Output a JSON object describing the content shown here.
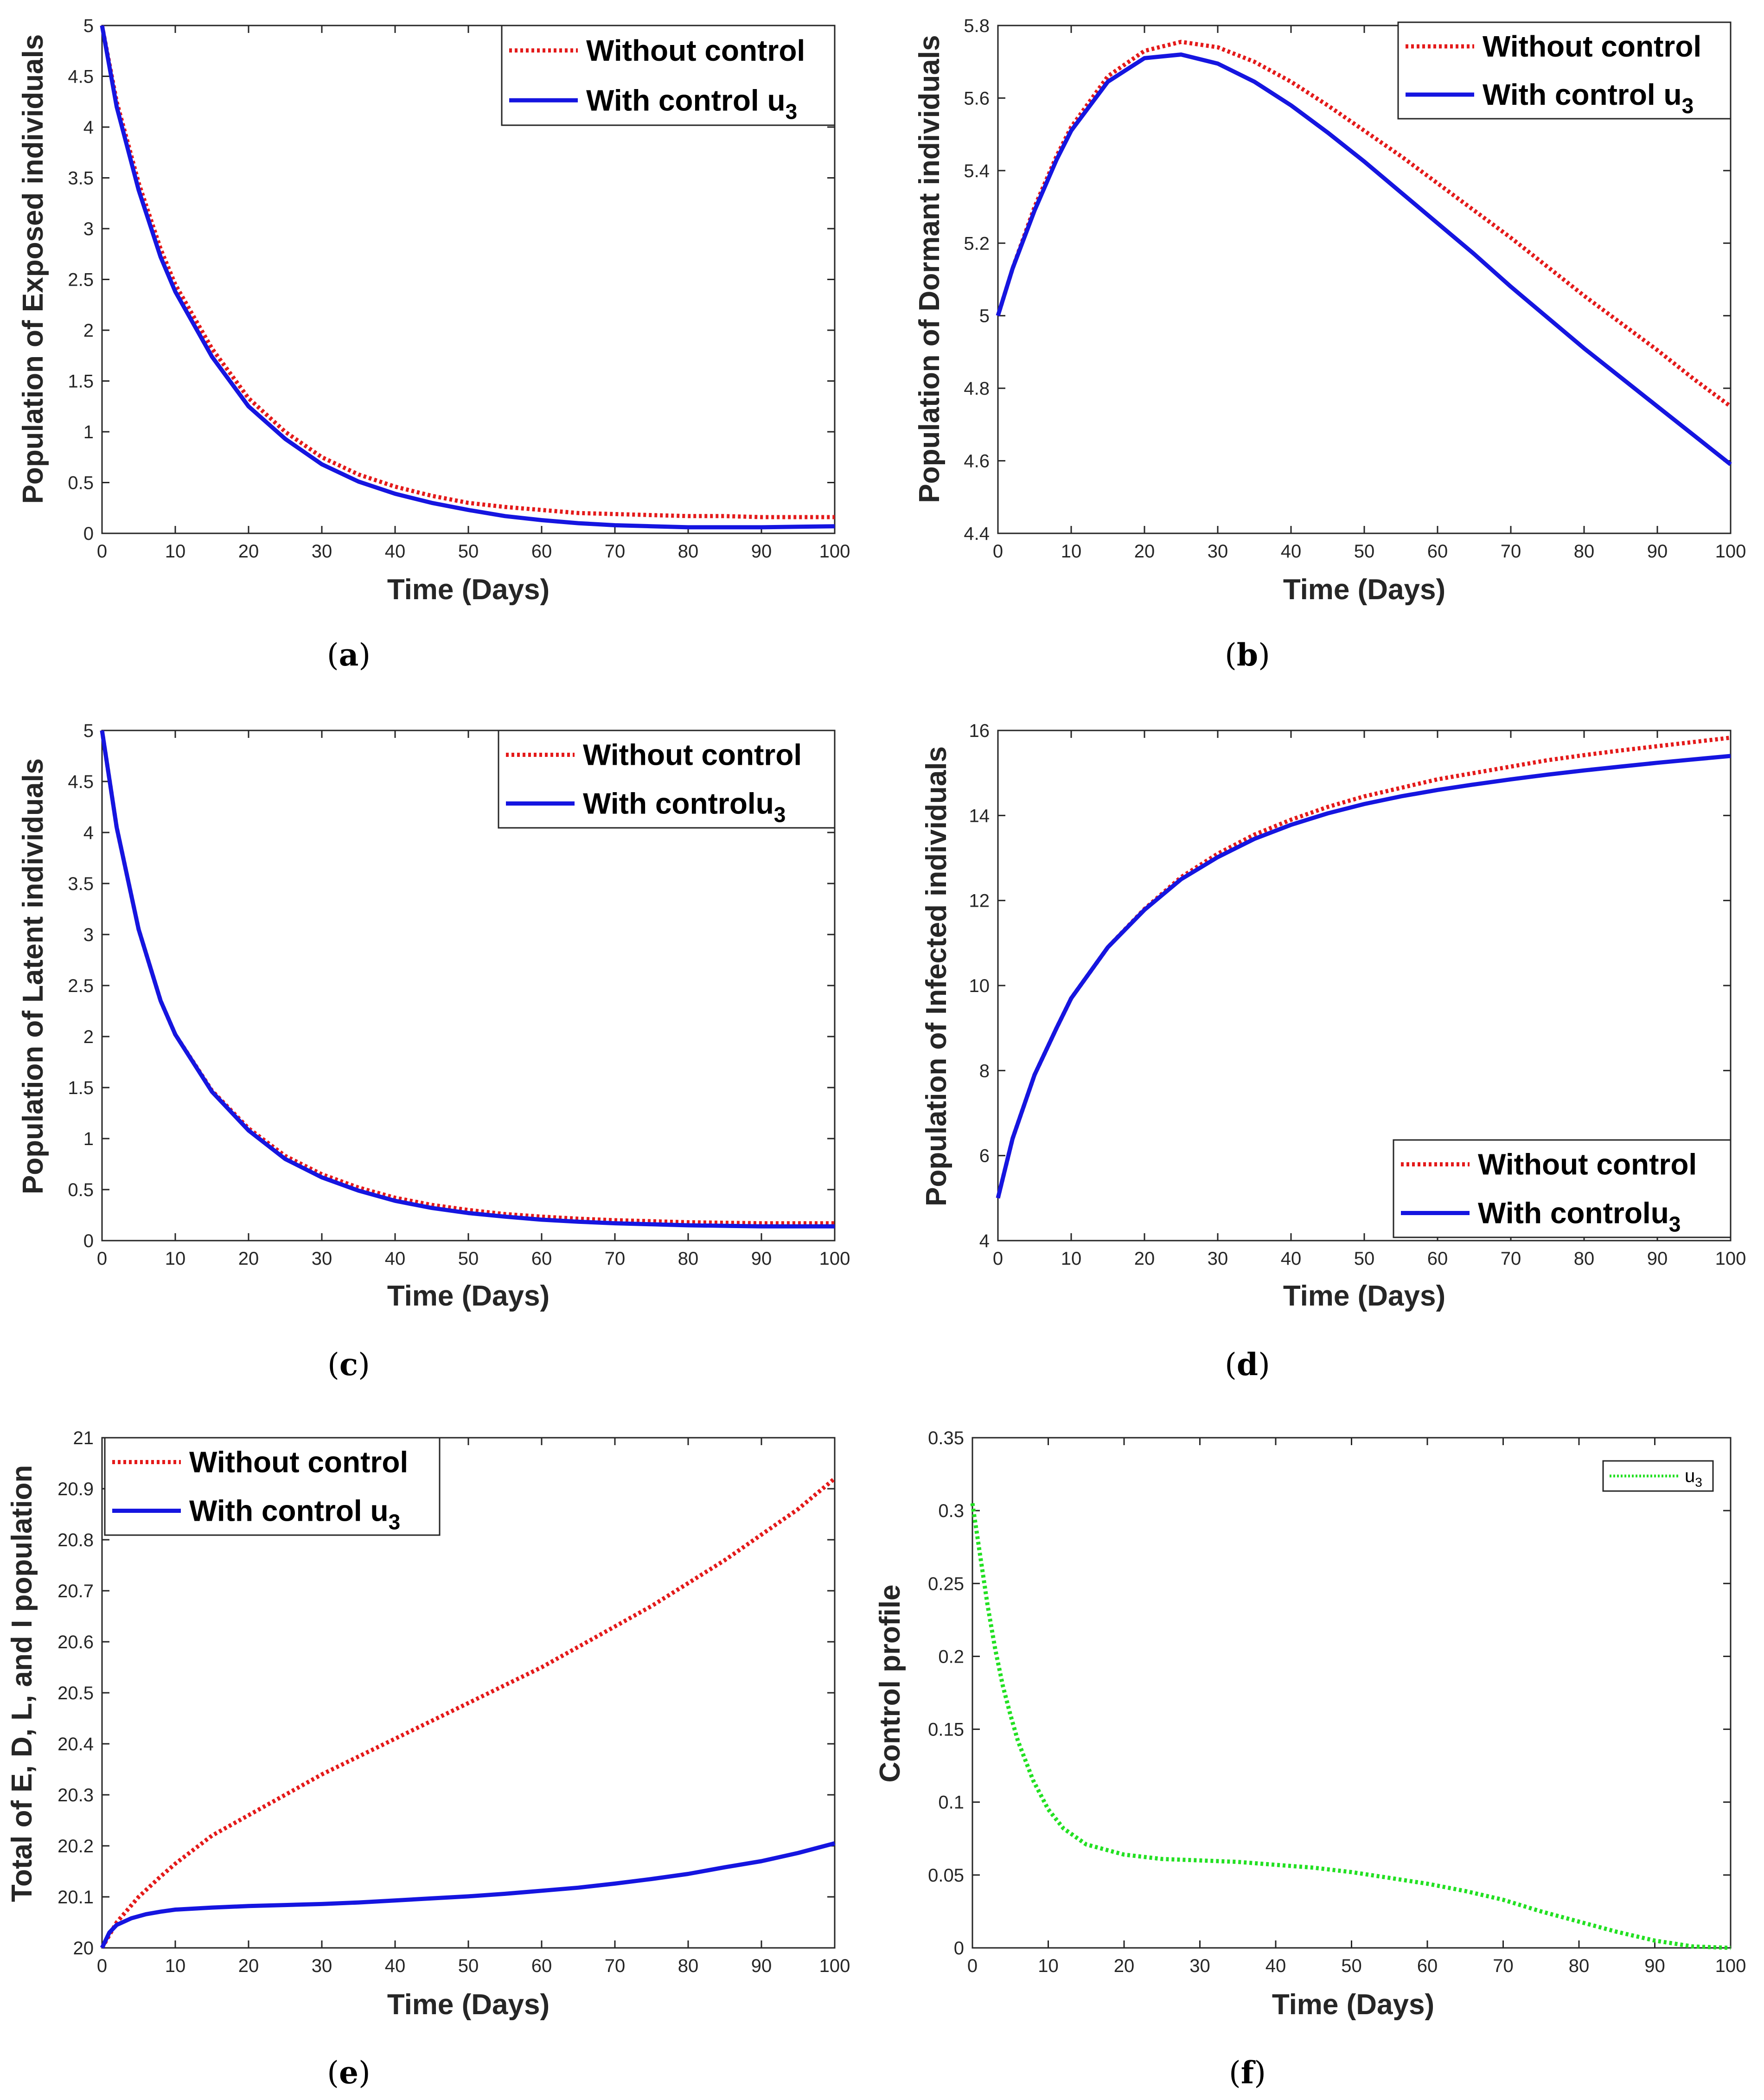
{
  "chart_data": [
    {
      "id": "a",
      "type": "line",
      "caption": "a",
      "xlabel": "Time (Days)",
      "ylabel": "Population of Exposed individuals",
      "xlim": [
        0,
        100
      ],
      "ylim": [
        0,
        5
      ],
      "xticks": [
        0,
        10,
        20,
        30,
        40,
        50,
        60,
        70,
        80,
        90,
        100
      ],
      "yticks": [
        0,
        0.5,
        1,
        1.5,
        2,
        2.5,
        3,
        3.5,
        4,
        4.5,
        5
      ],
      "legend": {
        "position": "top-right",
        "entries": [
          {
            "label": "Without control",
            "sub": ""
          },
          {
            "label": "With control u",
            "sub": "3"
          }
        ]
      },
      "series": [
        {
          "name": "Without control",
          "color": "#e41a1a",
          "style": "dotted",
          "x": [
            0,
            2,
            5,
            8,
            10,
            15,
            20,
            25,
            30,
            35,
            40,
            45,
            50,
            55,
            60,
            65,
            70,
            75,
            80,
            85,
            90,
            95,
            100
          ],
          "y": [
            5.0,
            4.25,
            3.45,
            2.8,
            2.45,
            1.82,
            1.33,
            1.0,
            0.75,
            0.58,
            0.46,
            0.37,
            0.3,
            0.26,
            0.23,
            0.2,
            0.19,
            0.18,
            0.17,
            0.17,
            0.16,
            0.16,
            0.16
          ]
        },
        {
          "name": "With control u3",
          "color": "#1515e0",
          "style": "solid",
          "x": [
            0,
            2,
            5,
            8,
            10,
            15,
            20,
            25,
            30,
            35,
            40,
            45,
            50,
            55,
            60,
            65,
            70,
            75,
            80,
            85,
            90,
            95,
            100
          ],
          "y": [
            5.0,
            4.2,
            3.38,
            2.72,
            2.38,
            1.74,
            1.25,
            0.93,
            0.68,
            0.51,
            0.39,
            0.3,
            0.23,
            0.17,
            0.13,
            0.1,
            0.08,
            0.07,
            0.06,
            0.06,
            0.06,
            0.065,
            0.07
          ]
        }
      ]
    },
    {
      "id": "b",
      "type": "line",
      "caption": "b",
      "xlabel": "Time (Days)",
      "ylabel": "Population of Dormant individuals",
      "xlim": [
        0,
        100
      ],
      "ylim": [
        4.4,
        5.8
      ],
      "xticks": [
        0,
        10,
        20,
        30,
        40,
        50,
        60,
        70,
        80,
        90,
        100
      ],
      "yticks": [
        4.4,
        4.6,
        4.8,
        5,
        5.2,
        5.4,
        5.6,
        5.8
      ],
      "legend": {
        "position": "top-right",
        "entries": [
          {
            "label": "Without control",
            "sub": ""
          },
          {
            "label": "With control u",
            "sub": "3"
          }
        ]
      },
      "series": [
        {
          "name": "Without control",
          "color": "#e41a1a",
          "style": "dotted",
          "x": [
            0,
            2,
            5,
            8,
            10,
            15,
            20,
            25,
            30,
            35,
            40,
            45,
            50,
            55,
            60,
            65,
            70,
            75,
            80,
            85,
            90,
            95,
            100
          ],
          "y": [
            5.0,
            5.13,
            5.3,
            5.44,
            5.52,
            5.66,
            5.73,
            5.755,
            5.74,
            5.7,
            5.645,
            5.58,
            5.51,
            5.44,
            5.365,
            5.29,
            5.215,
            5.135,
            5.055,
            4.98,
            4.905,
            4.825,
            4.75
          ]
        },
        {
          "name": "With control u3",
          "color": "#1515e0",
          "style": "solid",
          "x": [
            0,
            2,
            5,
            8,
            10,
            15,
            20,
            25,
            30,
            35,
            40,
            45,
            50,
            55,
            60,
            65,
            70,
            75,
            80,
            85,
            90,
            95,
            100
          ],
          "y": [
            5.0,
            5.13,
            5.29,
            5.43,
            5.51,
            5.645,
            5.71,
            5.72,
            5.695,
            5.645,
            5.58,
            5.505,
            5.425,
            5.34,
            5.255,
            5.17,
            5.08,
            4.995,
            4.91,
            4.83,
            4.75,
            4.67,
            4.59
          ]
        }
      ]
    },
    {
      "id": "c",
      "type": "line",
      "caption": "c",
      "xlabel": "Time (Days)",
      "ylabel": "Population of Latent individuals",
      "xlim": [
        0,
        100
      ],
      "ylim": [
        0,
        5
      ],
      "xticks": [
        0,
        10,
        20,
        30,
        40,
        50,
        60,
        70,
        80,
        90,
        100
      ],
      "yticks": [
        0,
        0.5,
        1,
        1.5,
        2,
        2.5,
        3,
        3.5,
        4,
        4.5,
        5
      ],
      "legend": {
        "position": "top-right",
        "entries": [
          {
            "label": "Without control",
            "sub": ""
          },
          {
            "label": "With controlu",
            "sub": "3"
          }
        ]
      },
      "series": [
        {
          "name": "Without control",
          "color": "#e41a1a",
          "style": "dotted",
          "x": [
            0,
            2,
            5,
            8,
            10,
            15,
            20,
            25,
            30,
            35,
            40,
            45,
            50,
            55,
            60,
            65,
            70,
            75,
            80,
            85,
            90,
            95,
            100
          ],
          "y": [
            5.0,
            4.05,
            3.05,
            2.35,
            2.02,
            1.47,
            1.1,
            0.83,
            0.65,
            0.52,
            0.42,
            0.35,
            0.3,
            0.26,
            0.235,
            0.215,
            0.2,
            0.19,
            0.18,
            0.175,
            0.17,
            0.17,
            0.17
          ]
        },
        {
          "name": "With controlu3",
          "color": "#1515e0",
          "style": "solid",
          "x": [
            0,
            2,
            5,
            8,
            10,
            15,
            20,
            25,
            30,
            35,
            40,
            45,
            50,
            55,
            60,
            65,
            70,
            75,
            80,
            85,
            90,
            95,
            100
          ],
          "y": [
            5.0,
            4.05,
            3.05,
            2.35,
            2.02,
            1.46,
            1.08,
            0.8,
            0.62,
            0.49,
            0.39,
            0.32,
            0.27,
            0.235,
            0.205,
            0.185,
            0.17,
            0.16,
            0.15,
            0.145,
            0.14,
            0.14,
            0.14
          ]
        }
      ]
    },
    {
      "id": "d",
      "type": "line",
      "caption": "d",
      "xlabel": "Time (Days)",
      "ylabel": "Population of Infected individuals",
      "xlim": [
        0,
        100
      ],
      "ylim": [
        4,
        16
      ],
      "xticks": [
        0,
        10,
        20,
        30,
        40,
        50,
        60,
        70,
        80,
        90,
        100
      ],
      "yticks": [
        4,
        6,
        8,
        10,
        12,
        14,
        16
      ],
      "legend": {
        "position": "bottom-right",
        "entries": [
          {
            "label": "Without control",
            "sub": ""
          },
          {
            "label": "With controlu",
            "sub": "3"
          }
        ]
      },
      "series": [
        {
          "name": "Without control",
          "color": "#e41a1a",
          "style": "dotted",
          "x": [
            0,
            2,
            5,
            8,
            10,
            15,
            20,
            25,
            30,
            35,
            40,
            45,
            50,
            55,
            60,
            65,
            70,
            75,
            80,
            85,
            90,
            95,
            100
          ],
          "y": [
            5.0,
            6.4,
            7.9,
            9.0,
            9.7,
            10.9,
            11.8,
            12.55,
            13.1,
            13.55,
            13.9,
            14.2,
            14.45,
            14.65,
            14.85,
            15.0,
            15.15,
            15.3,
            15.42,
            15.53,
            15.63,
            15.73,
            15.83
          ]
        },
        {
          "name": "With controlu3",
          "color": "#1515e0",
          "style": "solid",
          "x": [
            0,
            2,
            5,
            8,
            10,
            15,
            20,
            25,
            30,
            35,
            40,
            45,
            50,
            55,
            60,
            65,
            70,
            75,
            80,
            85,
            90,
            95,
            100
          ],
          "y": [
            5.0,
            6.4,
            7.9,
            9.0,
            9.7,
            10.9,
            11.78,
            12.5,
            13.02,
            13.45,
            13.78,
            14.05,
            14.27,
            14.45,
            14.6,
            14.73,
            14.85,
            14.96,
            15.06,
            15.15,
            15.24,
            15.32,
            15.4
          ]
        }
      ]
    },
    {
      "id": "e",
      "type": "line",
      "caption": "e",
      "xlabel": "Time (Days)",
      "ylabel": "Total of E, D, L, and I population",
      "xlim": [
        0,
        100
      ],
      "ylim": [
        20,
        21
      ],
      "xticks": [
        0,
        10,
        20,
        30,
        40,
        50,
        60,
        70,
        80,
        90,
        100
      ],
      "yticks": [
        20,
        20.1,
        20.2,
        20.3,
        20.4,
        20.5,
        20.6,
        20.7,
        20.8,
        20.9,
        21
      ],
      "legend": {
        "position": "top-left",
        "entries": [
          {
            "label": "Without control",
            "sub": ""
          },
          {
            "label": "With control u",
            "sub": "3"
          }
        ]
      },
      "series": [
        {
          "name": "Without control",
          "color": "#e41a1a",
          "style": "dotted",
          "x": [
            0,
            2,
            5,
            8,
            10,
            15,
            20,
            25,
            30,
            35,
            40,
            45,
            50,
            55,
            60,
            65,
            70,
            75,
            80,
            85,
            90,
            95,
            100
          ],
          "y": [
            20.0,
            20.05,
            20.1,
            20.14,
            20.165,
            20.22,
            20.26,
            20.3,
            20.34,
            20.375,
            20.41,
            20.445,
            20.48,
            20.515,
            20.55,
            20.59,
            20.63,
            20.67,
            20.715,
            20.76,
            20.81,
            20.86,
            20.92
          ]
        },
        {
          "name": "With control u3",
          "color": "#1515e0",
          "style": "solid",
          "x": [
            0,
            1,
            2,
            4,
            6,
            8,
            10,
            15,
            20,
            25,
            30,
            35,
            40,
            45,
            50,
            55,
            60,
            65,
            70,
            75,
            80,
            85,
            90,
            95,
            100
          ],
          "y": [
            20.0,
            20.03,
            20.045,
            20.058,
            20.066,
            20.071,
            20.075,
            20.079,
            20.082,
            20.084,
            20.086,
            20.089,
            20.093,
            20.097,
            20.101,
            20.106,
            20.112,
            20.118,
            20.126,
            20.135,
            20.145,
            20.158,
            20.17,
            20.186,
            20.205
          ]
        }
      ]
    },
    {
      "id": "f",
      "type": "line",
      "caption": "f",
      "xlabel": "Time (Days)",
      "ylabel": "Control profile",
      "xlim": [
        0,
        100
      ],
      "ylim": [
        0,
        0.35
      ],
      "xticks": [
        0,
        10,
        20,
        30,
        40,
        50,
        60,
        70,
        80,
        90,
        100
      ],
      "yticks": [
        0,
        0.05,
        0.1,
        0.15,
        0.2,
        0.25,
        0.3,
        0.35
      ],
      "legend": {
        "position": "top-right",
        "small": true,
        "entries": [
          {
            "label": "u",
            "sub": "3"
          }
        ]
      },
      "series": [
        {
          "name": "u3",
          "color": "#22e022",
          "style": "dotted",
          "x": [
            0,
            1,
            2,
            3,
            4,
            5,
            6,
            8,
            10,
            12,
            15,
            20,
            25,
            30,
            35,
            40,
            45,
            50,
            55,
            60,
            65,
            70,
            75,
            80,
            85,
            90,
            95,
            100
          ],
          "y": [
            0.305,
            0.27,
            0.235,
            0.205,
            0.18,
            0.16,
            0.142,
            0.115,
            0.095,
            0.082,
            0.071,
            0.064,
            0.061,
            0.06,
            0.059,
            0.057,
            0.055,
            0.052,
            0.048,
            0.044,
            0.039,
            0.033,
            0.025,
            0.018,
            0.011,
            0.005,
            0.001,
            0.0
          ]
        }
      ]
    }
  ]
}
